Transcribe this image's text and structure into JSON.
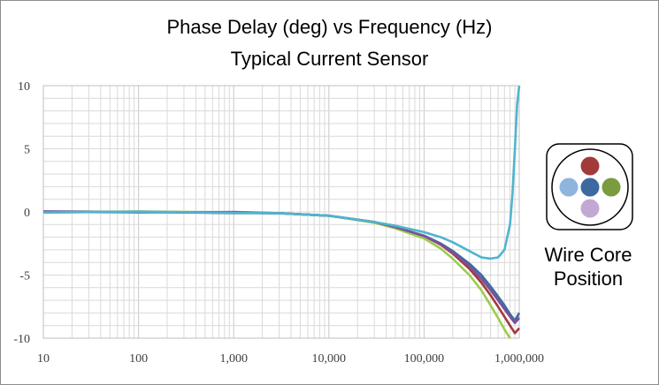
{
  "chart_data": {
    "type": "line",
    "title": "Phase Delay (deg) vs Frequency (Hz)",
    "subtitle": "Typical Current Sensor",
    "xlabel": "",
    "ylabel": "",
    "x_scale": "log",
    "xlim": [
      10,
      1000000
    ],
    "ylim": [
      -10,
      10
    ],
    "grid": true,
    "x_ticks": [
      10,
      100,
      1000,
      10000,
      100000,
      1000000
    ],
    "x_tick_labels": [
      "10",
      "100",
      "1,000",
      "10,000",
      "100,000",
      "1,000,000"
    ],
    "y_ticks": [
      10,
      5,
      0,
      -5,
      -10
    ],
    "y_tick_labels": [
      "10",
      "5",
      "0",
      "-5",
      "-10"
    ],
    "series": [
      {
        "name": "Red",
        "color": "#a33a3a",
        "x": [
          10,
          100,
          1000,
          3000,
          10000,
          30000,
          50000,
          100000,
          150000,
          200000,
          300000,
          400000,
          500000,
          600000,
          700000,
          800000,
          900000,
          1000000
        ],
        "y": [
          0.0,
          0.0,
          -0.05,
          -0.1,
          -0.3,
          -0.8,
          -1.2,
          -1.9,
          -2.6,
          -3.3,
          -4.5,
          -5.6,
          -6.6,
          -7.5,
          -8.3,
          -9.0,
          -9.6,
          -9.2
        ]
      },
      {
        "name": "Light Blue",
        "color": "#8fb4de",
        "x": [
          10,
          100,
          1000,
          3000,
          10000,
          30000,
          50000,
          100000,
          150000,
          200000,
          300000,
          400000,
          500000,
          600000,
          700000,
          800000,
          900000,
          1000000
        ],
        "y": [
          0.0,
          0.0,
          -0.05,
          -0.1,
          -0.3,
          -0.8,
          -1.2,
          -1.85,
          -2.5,
          -3.1,
          -4.2,
          -5.2,
          -6.1,
          -6.9,
          -7.6,
          -8.2,
          -8.7,
          -8.3
        ]
      },
      {
        "name": "Dark Blue",
        "color": "#3c6aa0",
        "x": [
          10,
          100,
          1000,
          3000,
          10000,
          30000,
          50000,
          100000,
          150000,
          200000,
          300000,
          400000,
          500000,
          600000,
          700000,
          800000,
          900000,
          1000000
        ],
        "y": [
          0.0,
          0.0,
          -0.05,
          -0.1,
          -0.3,
          -0.8,
          -1.2,
          -1.9,
          -2.5,
          -3.1,
          -4.1,
          -5.0,
          -5.9,
          -6.7,
          -7.4,
          -8.1,
          -8.6,
          -8.0
        ]
      },
      {
        "name": "Green",
        "color": "#9acd4a",
        "x": [
          10,
          100,
          1000,
          3000,
          10000,
          30000,
          50000,
          100000,
          150000,
          200000,
          300000,
          400000,
          500000,
          600000,
          700000,
          800000
        ],
        "y": [
          0.0,
          0.0,
          -0.05,
          -0.1,
          -0.3,
          -0.85,
          -1.3,
          -2.1,
          -2.9,
          -3.7,
          -5.0,
          -6.2,
          -7.4,
          -8.4,
          -9.3,
          -10.0
        ]
      },
      {
        "name": "Purple",
        "color": "#7c509a",
        "x": [
          10,
          100,
          1000,
          3000,
          10000,
          30000,
          50000,
          100000,
          150000,
          200000,
          300000,
          400000,
          500000,
          600000,
          700000,
          800000,
          900000,
          1000000
        ],
        "y": [
          0.0,
          0.0,
          -0.05,
          -0.1,
          -0.3,
          -0.8,
          -1.2,
          -1.9,
          -2.55,
          -3.2,
          -4.3,
          -5.3,
          -6.2,
          -7.0,
          -7.7,
          -8.3,
          -8.8,
          -8.4
        ]
      },
      {
        "name": "Cyan",
        "color": "#4fb4cf",
        "x": [
          10,
          100,
          1000,
          3000,
          10000,
          30000,
          50000,
          100000,
          150000,
          200000,
          300000,
          400000,
          500000,
          600000,
          700000,
          800000,
          850000,
          900000,
          950000,
          1000000
        ],
        "y": [
          0.0,
          0.0,
          -0.05,
          -0.1,
          -0.3,
          -0.8,
          -1.1,
          -1.6,
          -2.0,
          -2.4,
          -3.1,
          -3.6,
          -3.7,
          -3.6,
          -3.0,
          -1.0,
          1.5,
          5.0,
          8.5,
          10.0
        ]
      }
    ]
  },
  "legend": {
    "label_line1": "Wire Core",
    "label_line2": "Position",
    "dots": [
      {
        "name": "top",
        "color": "#a33a3a"
      },
      {
        "name": "left",
        "color": "#8fb4de"
      },
      {
        "name": "center",
        "color": "#3c6aa0"
      },
      {
        "name": "right",
        "color": "#7a9b3e"
      },
      {
        "name": "bottom",
        "color": "#c4a8d4"
      }
    ]
  }
}
